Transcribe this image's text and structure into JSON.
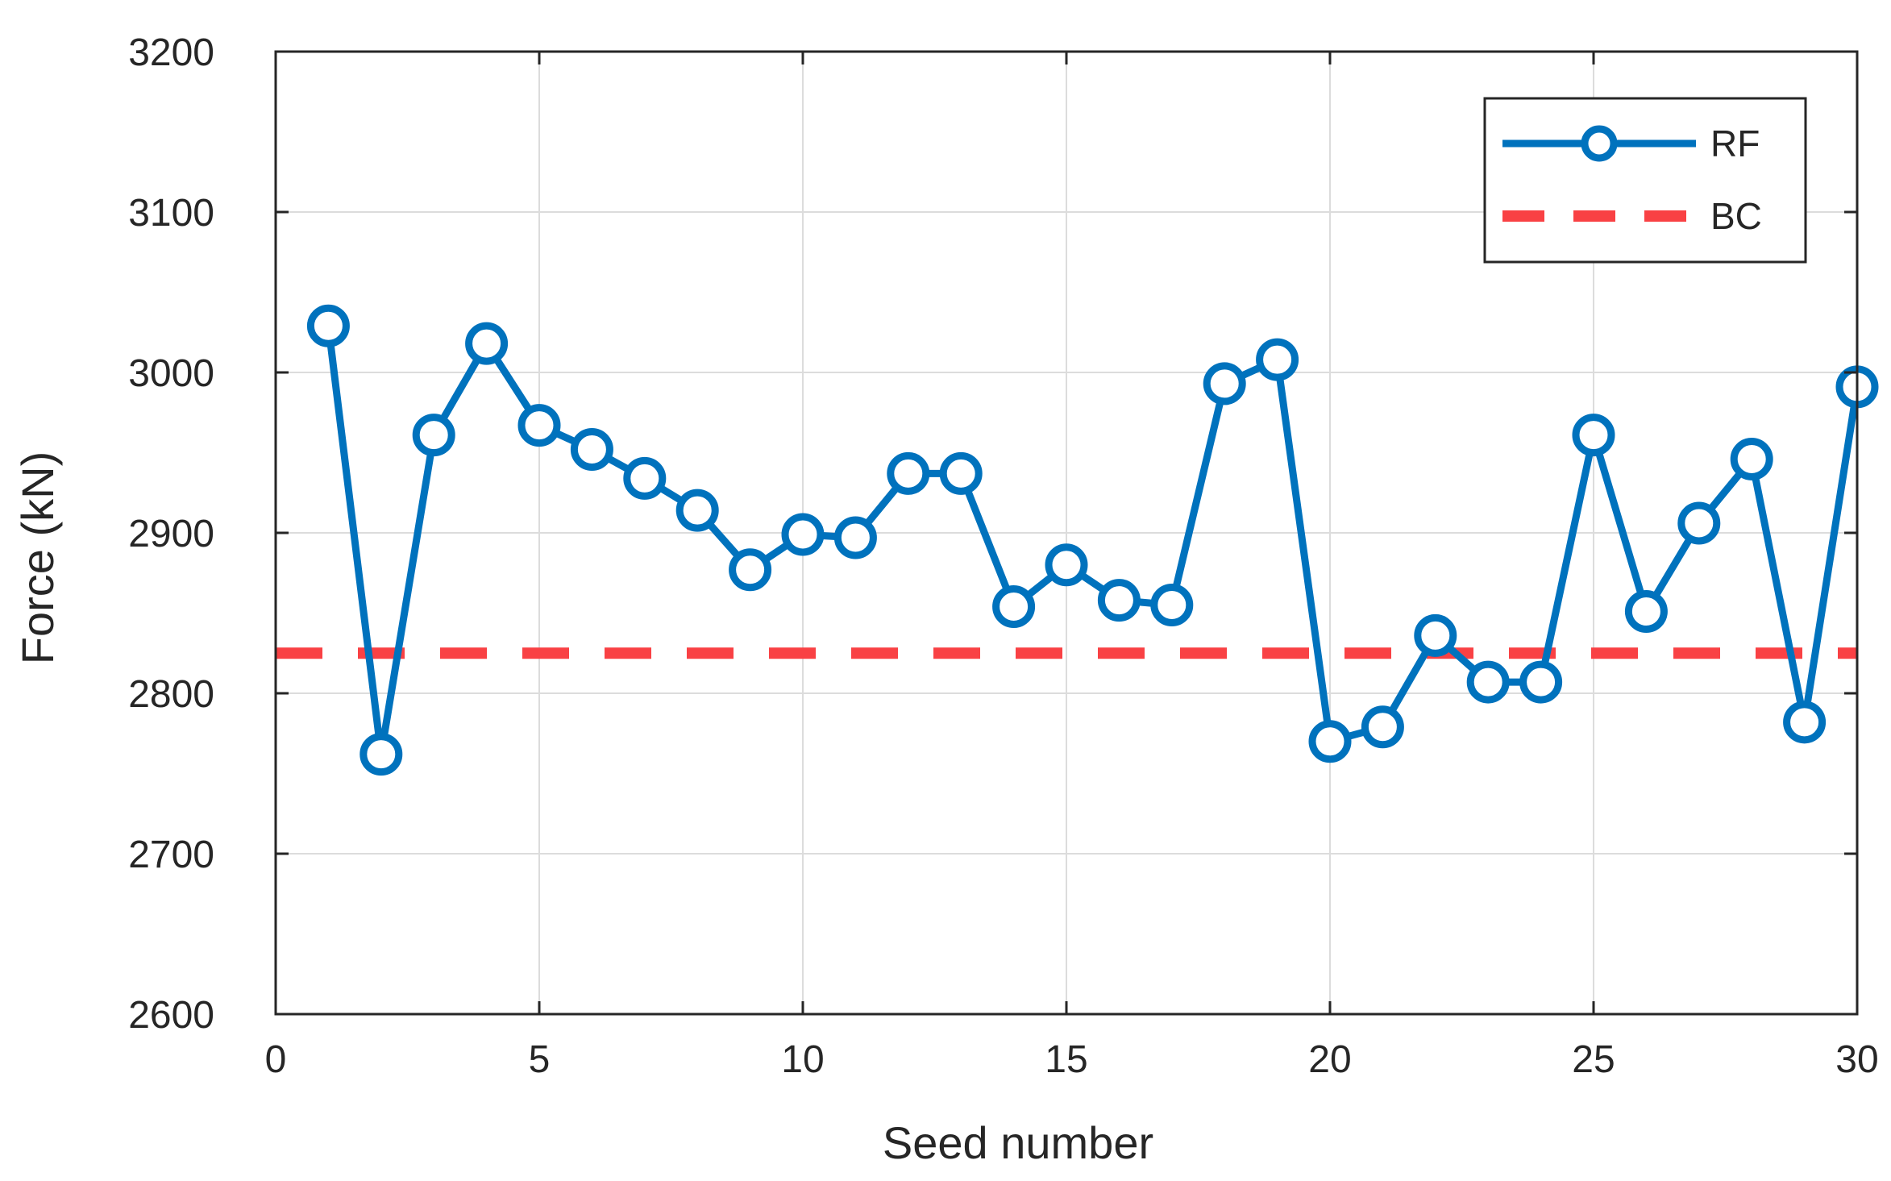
{
  "chart_data": {
    "type": "line",
    "title": "",
    "xlabel": "Seed number",
    "ylabel": "Force (kN)",
    "xlim": [
      0,
      30
    ],
    "ylim": [
      2600,
      3200
    ],
    "xticks": [
      0,
      5,
      10,
      15,
      20,
      25,
      30
    ],
    "yticks": [
      2600,
      2700,
      2800,
      2900,
      3000,
      3100,
      3200
    ],
    "xtick_labels": [
      "0",
      "5",
      "10",
      "15",
      "20",
      "25",
      "30"
    ],
    "ytick_labels": [
      "2600",
      "2700",
      "2800",
      "2900",
      "3000",
      "3100",
      "3200"
    ],
    "grid": true,
    "legend_position": "top-right",
    "series": [
      {
        "name": "RF",
        "style": "solid-line-circle-markers",
        "color": "#0072BD",
        "x": [
          1,
          2,
          3,
          4,
          5,
          6,
          7,
          8,
          9,
          10,
          11,
          12,
          13,
          14,
          15,
          16,
          17,
          18,
          19,
          20,
          21,
          22,
          23,
          24,
          25,
          26,
          27,
          28,
          29,
          30
        ],
        "values": [
          3029,
          2762,
          2961,
          3018,
          2967,
          2952,
          2934,
          2914,
          2877,
          2899,
          2897,
          2937,
          2937,
          2854,
          2880,
          2858,
          2855,
          2993,
          3008,
          2770,
          2779,
          2836,
          2807,
          2807,
          2961,
          2851,
          2906,
          2946,
          2782,
          2991
        ]
      },
      {
        "name": "BC",
        "style": "dashed-line",
        "color": "#F94144",
        "x": [
          0,
          30
        ],
        "values": [
          2825,
          2825
        ]
      }
    ]
  }
}
